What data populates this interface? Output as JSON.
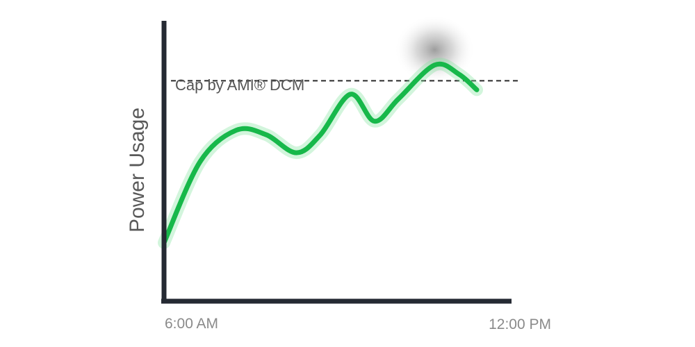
{
  "chart_data": {
    "type": "line",
    "title": "",
    "xlabel": "",
    "ylabel": "Power Usage",
    "x_ticks": [
      "6:00 AM",
      "12:00 PM"
    ],
    "xlim": [
      0,
      6
    ],
    "ylim": [
      0,
      100
    ],
    "grid": false,
    "legend": "none",
    "cap": {
      "label": "Cap by AMI® DCM",
      "value": 90,
      "style": "dashed"
    },
    "series": [
      {
        "color": "#17b84a",
        "x": [
          0,
          0.6,
          1.2,
          1.7,
          2.2,
          2.6,
          3.1,
          3.5,
          3.9,
          4.5,
          4.9,
          5.2
        ],
        "y": [
          18,
          54,
          68,
          66,
          58,
          66,
          84,
          72,
          82,
          97,
          93,
          86
        ]
      }
    ],
    "highlight": {
      "x": 4.5,
      "y": 97,
      "color": "#9a9a9a"
    }
  }
}
